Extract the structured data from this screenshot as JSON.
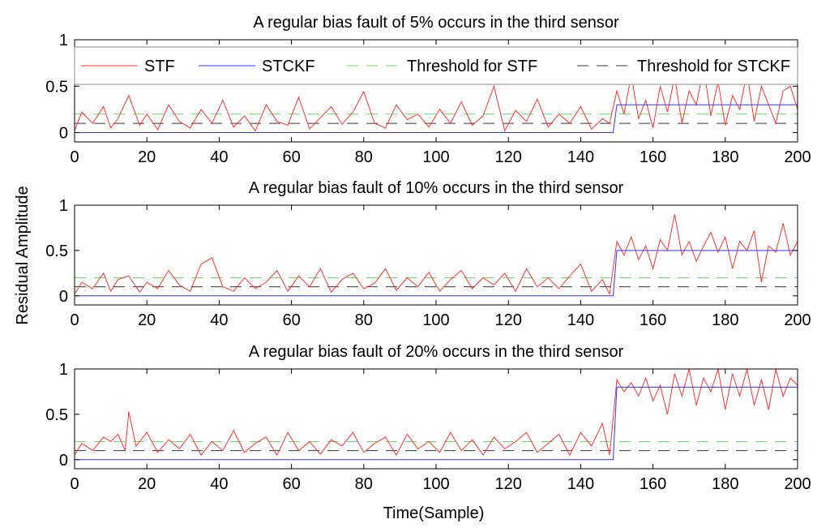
{
  "figure": {
    "ylabel": "Residual Amplitude",
    "xlabel": "Time(Sample)"
  },
  "colors": {
    "stf": "#ff3333",
    "stckf": "#3333ff",
    "threshold_stf": "#66dd66",
    "threshold_stckf": "#333333",
    "axes": "#000000",
    "legend_border": "#888888"
  },
  "legend": {
    "placement": "top",
    "entries": [
      "STF",
      "STCKF",
      "Threshold for STF",
      "Threshold for STCKF"
    ]
  },
  "chart_data": [
    {
      "type": "line",
      "title": "A regular bias fault of 5% occurs in the third sensor",
      "xlim": [
        0,
        200
      ],
      "ylim": [
        -0.1,
        1
      ],
      "xticks": [
        0,
        20,
        40,
        60,
        80,
        100,
        120,
        140,
        160,
        180,
        200
      ],
      "yticks": [
        0,
        0.5,
        1
      ],
      "series": [
        {
          "name": "STF",
          "x": [
            0,
            2,
            5,
            8,
            10,
            12,
            15,
            18,
            20,
            23,
            26,
            29,
            32,
            35,
            38,
            41,
            44,
            47,
            50,
            53,
            56,
            59,
            62,
            65,
            68,
            71,
            74,
            77,
            80,
            83,
            86,
            89,
            92,
            95,
            98,
            101,
            104,
            107,
            110,
            113,
            116,
            119,
            122,
            125,
            128,
            131,
            134,
            137,
            140,
            143,
            146,
            148,
            150,
            152,
            154,
            156,
            158,
            160,
            162,
            164,
            166,
            168,
            170,
            172,
            174,
            176,
            178,
            180,
            182,
            184,
            186,
            188,
            190,
            192,
            194,
            196,
            198,
            200
          ],
          "y": [
            0.02,
            0.22,
            0.1,
            0.28,
            0.05,
            0.15,
            0.4,
            0.08,
            0.2,
            0.03,
            0.3,
            0.12,
            0.05,
            0.25,
            0.1,
            0.35,
            0.06,
            0.18,
            0.02,
            0.3,
            0.12,
            0.08,
            0.38,
            0.04,
            0.16,
            0.28,
            0.09,
            0.22,
            0.44,
            0.1,
            0.05,
            0.3,
            0.14,
            0.2,
            0.06,
            0.25,
            0.1,
            0.33,
            0.08,
            0.18,
            0.5,
            0.02,
            0.24,
            0.12,
            0.36,
            0.06,
            0.2,
            0.1,
            0.28,
            0.04,
            0.15,
            0.1,
            0.45,
            0.2,
            0.62,
            0.15,
            0.35,
            0.05,
            0.5,
            0.22,
            0.6,
            0.1,
            0.45,
            0.3,
            0.7,
            0.18,
            0.55,
            0.08,
            0.4,
            0.25,
            0.65,
            0.12,
            0.5,
            0.3,
            0.1,
            0.45,
            0.5,
            0.25
          ]
        },
        {
          "name": "STCKF",
          "x": [
            0,
            149,
            150,
            200
          ],
          "y": [
            0.0,
            0.0,
            0.3,
            0.3
          ]
        },
        {
          "name": "Threshold for STF",
          "x": [
            0,
            200
          ],
          "y": [
            0.2,
            0.2
          ]
        },
        {
          "name": "Threshold for STCKF",
          "x": [
            0,
            200
          ],
          "y": [
            0.1,
            0.1
          ]
        }
      ]
    },
    {
      "type": "line",
      "title": "A regular bias fault of 10% occurs in the third sensor",
      "xlim": [
        0,
        200
      ],
      "ylim": [
        -0.1,
        1
      ],
      "xticks": [
        0,
        20,
        40,
        60,
        80,
        100,
        120,
        140,
        160,
        180,
        200
      ],
      "yticks": [
        0,
        0.5,
        1
      ],
      "series": [
        {
          "name": "STF",
          "x": [
            0,
            2,
            5,
            8,
            10,
            12,
            15,
            18,
            20,
            23,
            26,
            29,
            32,
            35,
            38,
            41,
            44,
            47,
            50,
            53,
            56,
            59,
            62,
            65,
            68,
            71,
            74,
            77,
            80,
            83,
            86,
            89,
            92,
            95,
            98,
            101,
            104,
            107,
            110,
            113,
            116,
            119,
            122,
            125,
            128,
            131,
            134,
            137,
            140,
            143,
            146,
            148,
            150,
            152,
            154,
            156,
            158,
            160,
            162,
            164,
            166,
            168,
            170,
            172,
            174,
            176,
            178,
            180,
            182,
            184,
            186,
            188,
            190,
            192,
            194,
            196,
            198,
            200
          ],
          "y": [
            0.02,
            0.15,
            0.08,
            0.25,
            0.05,
            0.18,
            0.22,
            0.04,
            0.15,
            0.08,
            0.28,
            0.12,
            0.05,
            0.35,
            0.42,
            0.1,
            0.05,
            0.2,
            0.08,
            0.15,
            0.28,
            0.05,
            0.22,
            0.1,
            0.3,
            0.04,
            0.18,
            0.25,
            0.08,
            0.14,
            0.3,
            0.06,
            0.2,
            0.1,
            0.26,
            0.05,
            0.18,
            0.28,
            0.08,
            0.2,
            0.12,
            0.25,
            0.05,
            0.3,
            0.1,
            0.2,
            0.08,
            0.22,
            0.35,
            0.05,
            0.18,
            0.02,
            0.6,
            0.45,
            0.65,
            0.4,
            0.55,
            0.3,
            0.62,
            0.5,
            0.9,
            0.45,
            0.6,
            0.38,
            0.55,
            0.7,
            0.48,
            0.65,
            0.3,
            0.6,
            0.5,
            0.72,
            0.15,
            0.55,
            0.48,
            0.8,
            0.45,
            0.6
          ]
        },
        {
          "name": "STCKF",
          "x": [
            0,
            149,
            150,
            200
          ],
          "y": [
            0.0,
            0.0,
            0.5,
            0.5
          ]
        },
        {
          "name": "Threshold for STF",
          "x": [
            0,
            200
          ],
          "y": [
            0.2,
            0.2
          ]
        },
        {
          "name": "Threshold for STCKF",
          "x": [
            0,
            200
          ],
          "y": [
            0.1,
            0.1
          ]
        }
      ]
    },
    {
      "type": "line",
      "title": "A regular bias fault of 20% occurs in the third sensor",
      "xlim": [
        0,
        200
      ],
      "ylim": [
        -0.1,
        1
      ],
      "xticks": [
        0,
        20,
        40,
        60,
        80,
        100,
        120,
        140,
        160,
        180,
        200
      ],
      "yticks": [
        0,
        0.5,
        1
      ],
      "series": [
        {
          "name": "STF",
          "x": [
            0,
            2,
            5,
            8,
            10,
            12,
            14,
            15,
            17,
            20,
            23,
            26,
            29,
            32,
            35,
            38,
            41,
            44,
            47,
            50,
            53,
            56,
            59,
            62,
            65,
            68,
            71,
            74,
            77,
            80,
            83,
            86,
            89,
            92,
            95,
            98,
            101,
            104,
            107,
            110,
            113,
            116,
            119,
            122,
            125,
            128,
            131,
            134,
            137,
            140,
            143,
            146,
            148,
            150,
            152,
            154,
            156,
            158,
            160,
            162,
            164,
            166,
            168,
            170,
            172,
            174,
            176,
            178,
            180,
            182,
            184,
            186,
            188,
            190,
            192,
            194,
            196,
            198,
            200
          ],
          "y": [
            0.05,
            0.18,
            0.1,
            0.25,
            0.2,
            0.28,
            0.1,
            0.53,
            0.15,
            0.3,
            0.08,
            0.22,
            0.12,
            0.28,
            0.05,
            0.2,
            0.1,
            0.32,
            0.08,
            0.18,
            0.25,
            0.05,
            0.3,
            0.1,
            0.2,
            0.06,
            0.22,
            0.15,
            0.3,
            0.08,
            0.18,
            0.25,
            0.05,
            0.28,
            0.12,
            0.2,
            0.08,
            0.3,
            0.1,
            0.22,
            0.05,
            0.25,
            0.12,
            0.2,
            0.3,
            0.08,
            0.18,
            0.28,
            0.05,
            0.3,
            0.15,
            0.4,
            0.05,
            0.88,
            0.75,
            0.85,
            0.7,
            0.9,
            0.65,
            0.82,
            0.5,
            0.95,
            0.7,
            1.0,
            0.6,
            0.9,
            0.75,
            1.0,
            0.55,
            0.95,
            0.7,
            1.0,
            0.6,
            0.88,
            0.55,
            1.0,
            0.7,
            0.9,
            0.82
          ]
        },
        {
          "name": "STCKF",
          "x": [
            0,
            149,
            150,
            200
          ],
          "y": [
            0.0,
            0.0,
            0.8,
            0.8
          ]
        },
        {
          "name": "Threshold for STF",
          "x": [
            0,
            200
          ],
          "y": [
            0.2,
            0.2
          ]
        },
        {
          "name": "Threshold for STCKF",
          "x": [
            0,
            200
          ],
          "y": [
            0.1,
            0.1
          ]
        }
      ]
    }
  ]
}
